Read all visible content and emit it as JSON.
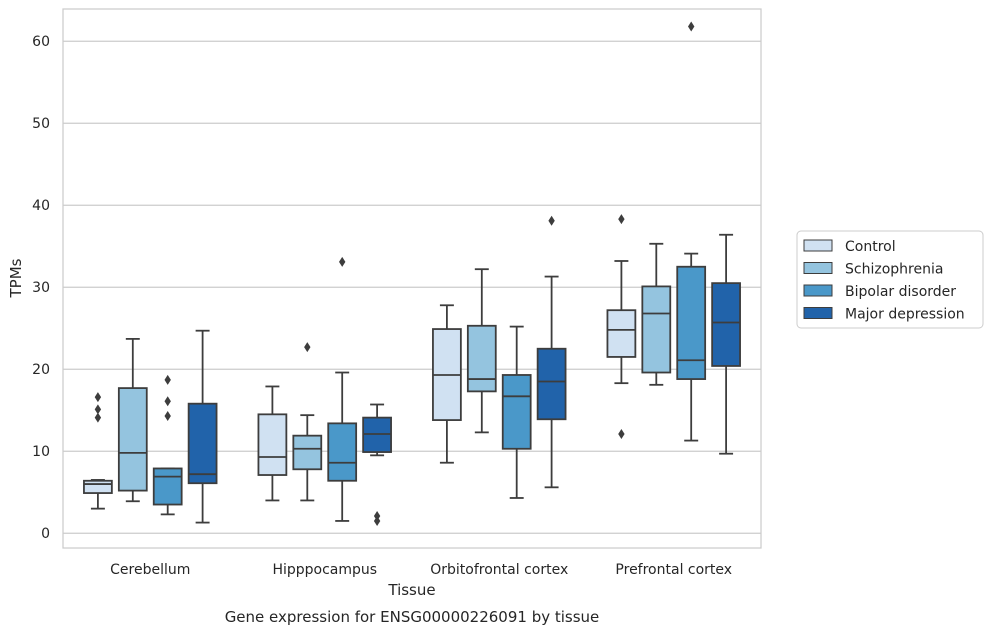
{
  "chart_data": {
    "type": "box",
    "xlabel": "Tissue",
    "ylabel": "TPMs",
    "caption": "Gene expression for ENSG00000226091 by tissue",
    "ylim": [
      -1.8,
      65
    ],
    "yticks": [
      0,
      10,
      20,
      30,
      40,
      50,
      60
    ],
    "grid": "horizontal",
    "legend_position": "right",
    "categories": [
      "Cerebellum",
      "Hipppocampus",
      "Orbitofrontal cortex",
      "Prefrontal cortex"
    ],
    "series": [
      {
        "name": "Control",
        "color": "#d0e1f2",
        "boxes": [
          {
            "whislo": 3.0,
            "q1": 4.9,
            "med": 6.0,
            "q3": 6.4,
            "whishi": 6.5,
            "fliers": [
              14.1,
              15.1,
              16.6
            ]
          },
          {
            "whislo": 4.0,
            "q1": 7.1,
            "med": 9.3,
            "q3": 14.5,
            "whishi": 17.9,
            "fliers": []
          },
          {
            "whislo": 8.6,
            "q1": 13.8,
            "med": 19.3,
            "q3": 24.9,
            "whishi": 27.8,
            "fliers": []
          },
          {
            "whislo": 18.3,
            "q1": 21.5,
            "med": 24.8,
            "q3": 27.2,
            "whishi": 33.2,
            "fliers": [
              12.1,
              38.3
            ]
          }
        ]
      },
      {
        "name": "Schizophrenia",
        "color": "#94c4df",
        "boxes": [
          {
            "whislo": 3.9,
            "q1": 5.2,
            "med": 9.8,
            "q3": 17.7,
            "whishi": 23.7,
            "fliers": []
          },
          {
            "whislo": 4.0,
            "q1": 7.8,
            "med": 10.3,
            "q3": 11.9,
            "whishi": 14.4,
            "fliers": [
              22.7
            ]
          },
          {
            "whislo": 12.3,
            "q1": 17.3,
            "med": 18.8,
            "q3": 25.3,
            "whishi": 32.2,
            "fliers": []
          },
          {
            "whislo": 18.1,
            "q1": 19.6,
            "med": 26.8,
            "q3": 30.1,
            "whishi": 35.3,
            "fliers": []
          }
        ]
      },
      {
        "name": "Bipolar disorder",
        "color": "#4a98c9",
        "boxes": [
          {
            "whislo": 2.3,
            "q1": 3.5,
            "med": 6.9,
            "q3": 7.9,
            "whishi": 7.9,
            "fliers": [
              14.3,
              16.1,
              18.7
            ]
          },
          {
            "whislo": 1.5,
            "q1": 6.4,
            "med": 8.6,
            "q3": 13.4,
            "whishi": 19.6,
            "fliers": [
              33.1
            ]
          },
          {
            "whislo": 4.3,
            "q1": 10.3,
            "med": 16.7,
            "q3": 19.3,
            "whishi": 25.2,
            "fliers": []
          },
          {
            "whislo": 11.3,
            "q1": 18.8,
            "med": 21.1,
            "q3": 32.5,
            "whishi": 34.1,
            "fliers": [
              61.8
            ]
          }
        ]
      },
      {
        "name": "Major depression",
        "color": "#2163aa",
        "boxes": [
          {
            "whislo": 1.3,
            "q1": 6.1,
            "med": 7.2,
            "q3": 15.8,
            "whishi": 24.7,
            "fliers": []
          },
          {
            "whislo": 9.5,
            "q1": 9.9,
            "med": 12.1,
            "q3": 14.1,
            "whishi": 15.7,
            "fliers": [
              1.5,
              2.1
            ]
          },
          {
            "whislo": 5.6,
            "q1": 13.9,
            "med": 18.5,
            "q3": 22.5,
            "whishi": 31.3,
            "fliers": [
              38.1
            ]
          },
          {
            "whislo": 9.7,
            "q1": 20.4,
            "med": 25.7,
            "q3": 30.5,
            "whishi": 36.4,
            "fliers": []
          }
        ]
      }
    ]
  }
}
